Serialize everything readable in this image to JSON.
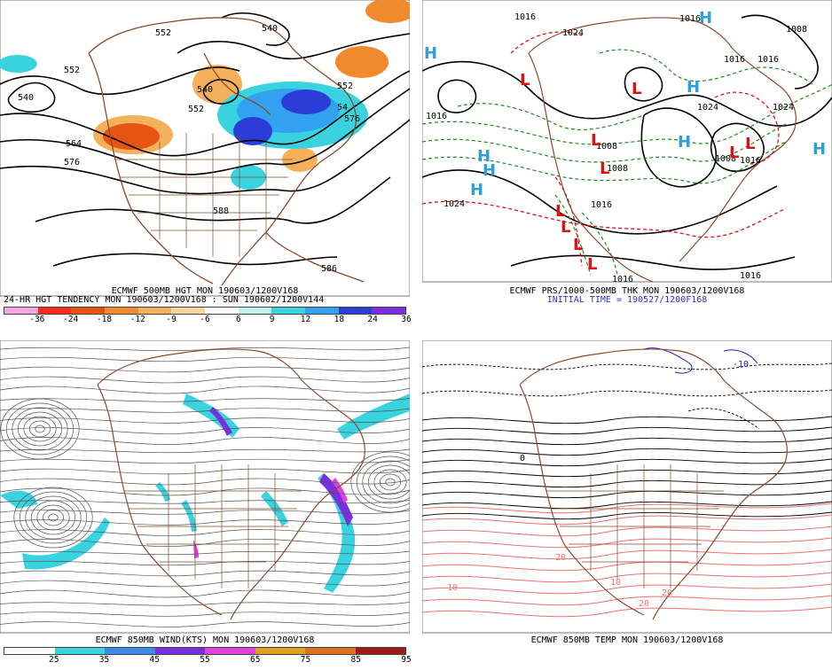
{
  "panels": {
    "hgt500": {
      "title": "ECMWF 500MB HGT MON 190603/1200V168",
      "subtitle": "24-HR HGT TENDENCY MON 190603/1200V168 : SUN 190602/1200V144",
      "contour_labels": [
        "540",
        "552",
        "552",
        "540",
        "564",
        "576",
        "552",
        "552",
        "576",
        "588",
        "586",
        "540",
        "54"
      ],
      "legend_ticks": [
        "-36",
        "-24",
        "-18",
        "-12",
        "-9",
        "-6",
        "6",
        "9",
        "12",
        "18",
        "24",
        "36"
      ],
      "legend_colors": [
        "#f3a6e0",
        "#ff2a1a",
        "#e65312",
        "#f08a2c",
        "#f4b05a",
        "#f7d3a2",
        "#ffffff",
        "#bff0f0",
        "#39d3e0",
        "#31a1f0",
        "#2b3dd6",
        "#7a2ee0"
      ]
    },
    "prs": {
      "title": "ECMWF PRS/1000-500MB THK MON 190603/1200V168",
      "subtitle": "INITIAL TIME = 190527/1200F168",
      "isobar_labels": [
        "1016",
        "1024",
        "1016",
        "1016",
        "1024",
        "1008",
        "1008",
        "1016",
        "1024",
        "1016",
        "1016",
        "1008",
        "1016",
        "1024",
        "1016",
        "1016",
        "1008"
      ],
      "highs": [
        "H",
        "H",
        "H",
        "H",
        "H",
        "H",
        "H",
        "H"
      ],
      "lows": [
        "L",
        "L",
        "L",
        "L",
        "L",
        "L",
        "L",
        "L",
        "L",
        "L"
      ]
    },
    "wind850": {
      "title": "ECMWF 850MB WIND(KTS) MON 190603/1200V168",
      "legend_ticks": [
        "25",
        "35",
        "45",
        "55",
        "65",
        "75",
        "85",
        "95"
      ],
      "legend_colors": [
        "#ffffff",
        "#39d3e0",
        "#3b8bea",
        "#7a2ee0",
        "#e040e0",
        "#e0a020",
        "#e07020",
        "#a01a1a"
      ]
    },
    "temp850": {
      "title": "ECMWF 850MB TEMP MON 190603/1200V168",
      "labels": [
        "-10",
        "0",
        "10",
        "20",
        "20",
        "10",
        "20"
      ]
    }
  },
  "colors": {
    "coast": "#8b4a2b",
    "contour": "#000000",
    "thickness_cold": "#1f8a1f",
    "thickness_warm": "#e01010",
    "high": "#2ea0d8",
    "low": "#e01010",
    "warm_isotherm": "#f07070",
    "cold_isotherm": "#2020c0"
  }
}
